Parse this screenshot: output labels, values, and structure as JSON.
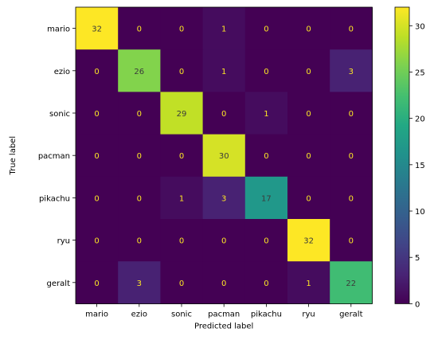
{
  "chart_data": {
    "type": "heatmap",
    "title": "",
    "xlabel": "Predicted label",
    "ylabel": "True label",
    "x_categories": [
      "mario",
      "ezio",
      "sonic",
      "pacman",
      "pikachu",
      "ryu",
      "geralt"
    ],
    "y_categories": [
      "mario",
      "ezio",
      "sonic",
      "pacman",
      "pikachu",
      "ryu",
      "geralt"
    ],
    "matrix": [
      [
        32,
        0,
        0,
        1,
        0,
        0,
        0
      ],
      [
        0,
        26,
        0,
        1,
        0,
        0,
        3
      ],
      [
        0,
        0,
        29,
        0,
        1,
        0,
        0
      ],
      [
        0,
        0,
        0,
        30,
        0,
        0,
        0
      ],
      [
        0,
        0,
        1,
        3,
        17,
        0,
        0
      ],
      [
        0,
        0,
        0,
        0,
        0,
        32,
        0
      ],
      [
        0,
        3,
        0,
        0,
        0,
        1,
        22
      ]
    ],
    "colormap": "viridis",
    "value_range": [
      0,
      32
    ],
    "colorbar_ticks": [
      0,
      5,
      10,
      15,
      20,
      25,
      30
    ],
    "text_color_on_dark": "#fde725",
    "text_color_on_light": "#3b3b3b"
  }
}
